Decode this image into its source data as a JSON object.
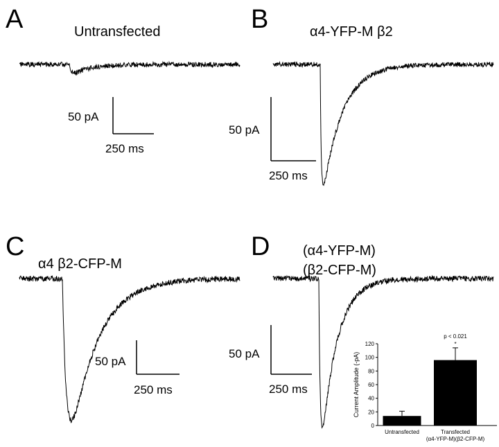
{
  "panels": [
    {
      "letter": "A",
      "title_lines": [
        "Untransfected"
      ],
      "scale_current": "50 pA",
      "scale_time": "250 ms"
    },
    {
      "letter": "B",
      "title_lines": [
        "α4-YFP-M β2"
      ],
      "scale_current": "50 pA",
      "scale_time": "250 ms"
    },
    {
      "letter": "C",
      "title_lines": [
        "α4 β2-CFP-M"
      ],
      "scale_current": "50 pA",
      "scale_time": "250 ms"
    },
    {
      "letter": "D",
      "title_lines": [
        "(α4-YFP-M)",
        "(β2-CFP-M)"
      ],
      "scale_current": "50 pA",
      "scale_time": "250 ms"
    }
  ],
  "chart_data": [
    {
      "type": "line",
      "panel": "A",
      "series_label": "Untransfected",
      "peak_current_pA": -12,
      "noise": "high-frequency noise on baseline"
    },
    {
      "type": "line",
      "panel": "B",
      "series_label": "α4-YFP-M β2",
      "peak_current_pA": -95
    },
    {
      "type": "line",
      "panel": "C",
      "series_label": "α4 β2-CFP-M",
      "peak_current_pA": -87
    },
    {
      "type": "line",
      "panel": "D",
      "series_label": "(α4-YFP-M)(β2-CFP-M)",
      "peak_current_pA": -95
    },
    {
      "type": "bar",
      "panel": "D-inset",
      "categories": [
        "Untransfected",
        "Transfected"
      ],
      "category_sublabels": [
        "",
        "(α4-YFP-M)(β2-CFP-M)"
      ],
      "values": [
        14,
        96
      ],
      "errors": [
        7,
        18
      ],
      "ylabel": "Current Amplitude (-pA)",
      "ylim": [
        0,
        120
      ],
      "yticks": [
        0,
        20,
        40,
        60,
        80,
        100,
        120
      ],
      "annotation": "p < 0.021",
      "significance_marker": "*",
      "bar_color": "#000000"
    }
  ]
}
